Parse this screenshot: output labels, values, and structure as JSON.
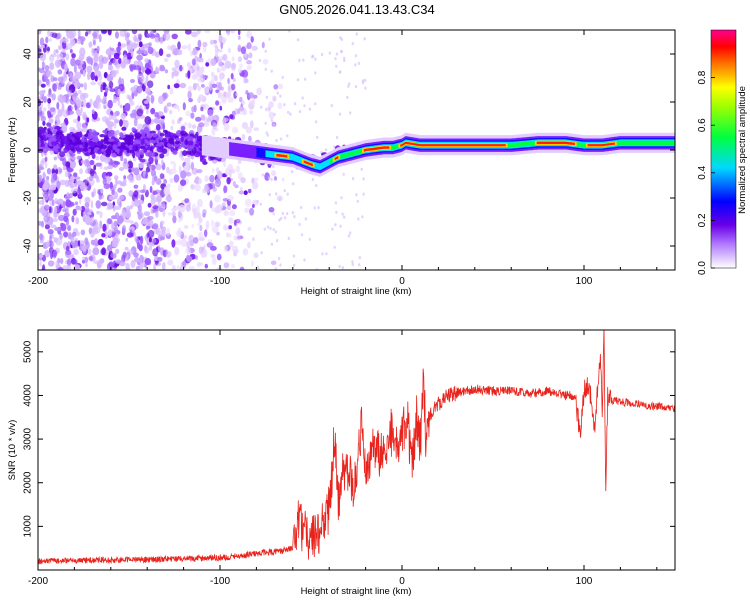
{
  "title": "GN05.2026.041.13.43.C34",
  "chart_data": [
    {
      "type": "heatmap",
      "name": "spectrogram",
      "xlabel": "Height of straight line (km)",
      "ylabel": "Frequency (Hz)",
      "xlim": [
        -200,
        150
      ],
      "ylim": [
        -50,
        50
      ],
      "xticks": [
        -200,
        -100,
        0,
        100
      ],
      "yticks": [
        -40,
        -20,
        0,
        20,
        40
      ],
      "colorbar": {
        "label": "Normalized spectral amplitude",
        "range": [
          0,
          1
        ],
        "ticks": [
          0.0,
          0.2,
          0.4,
          0.6,
          0.8
        ],
        "stops": [
          "#ffffff",
          "#9a4dff",
          "#5000d8",
          "#0000ff",
          "#00d8ff",
          "#00ff30",
          "#ffff00",
          "#ff6000",
          "#ff0000",
          "#ff0090"
        ]
      },
      "ridge": {
        "x": [
          -200,
          -180,
          -160,
          -140,
          -120,
          -100,
          -90,
          -80,
          -70,
          -60,
          -50,
          -45,
          -40,
          -35,
          -30,
          -20,
          -10,
          -5,
          0,
          2,
          10,
          20,
          40,
          60,
          75,
          90,
          100,
          110,
          120,
          150
        ],
        "freq": [
          5,
          3,
          2,
          3,
          3,
          1,
          0,
          -1,
          -2,
          -3,
          -6,
          -7,
          -5,
          -3,
          -2,
          0,
          1,
          1,
          2,
          3,
          2,
          2,
          2,
          2,
          3,
          3,
          2,
          2,
          3,
          3
        ]
      }
    },
    {
      "type": "line",
      "name": "snr",
      "xlabel": "Height of straight line (km)",
      "ylabel": "SNR (10 * v/v)",
      "xlim": [
        -200,
        150
      ],
      "ylim": [
        0,
        5500
      ],
      "xticks": [
        -200,
        -100,
        0,
        100
      ],
      "yticks": [
        1000,
        2000,
        3000,
        4000,
        5000
      ],
      "color": "#e8231c",
      "series": [
        {
          "name": "SNR",
          "x": [
            -200,
            -180,
            -160,
            -140,
            -120,
            -100,
            -90,
            -80,
            -70,
            -65,
            -60,
            -57,
            -55,
            -50,
            -45,
            -40,
            -37,
            -35,
            -33,
            -30,
            -27,
            -25,
            -22,
            -20,
            -18,
            -15,
            -12,
            -10,
            -8,
            -6,
            -4,
            -2,
            0,
            3,
            5,
            8,
            10,
            12,
            13,
            14,
            15,
            17,
            20,
            25,
            30,
            35,
            40,
            50,
            60,
            70,
            80,
            90,
            95,
            98,
            100,
            102,
            104,
            106,
            107,
            108,
            109,
            110,
            111,
            112,
            113,
            115,
            120,
            130,
            140,
            150
          ],
          "y": [
            200,
            220,
            230,
            240,
            260,
            280,
            320,
            380,
            420,
            450,
            500,
            1200,
            900,
            700,
            900,
            1400,
            3100,
            1500,
            2200,
            2400,
            1800,
            2300,
            3300,
            2000,
            2500,
            2900,
            2500,
            3000,
            2800,
            3200,
            2600,
            3000,
            3200,
            3500,
            2500,
            3400,
            2800,
            4500,
            3200,
            3000,
            3500,
            3700,
            3800,
            4000,
            4050,
            4100,
            4150,
            4100,
            4100,
            4050,
            4100,
            4000,
            4000,
            3100,
            4100,
            4200,
            3950,
            3100,
            4000,
            4300,
            5000,
            3500,
            5400,
            1700,
            4000,
            3900,
            3850,
            3800,
            3750,
            3700
          ]
        }
      ]
    }
  ]
}
